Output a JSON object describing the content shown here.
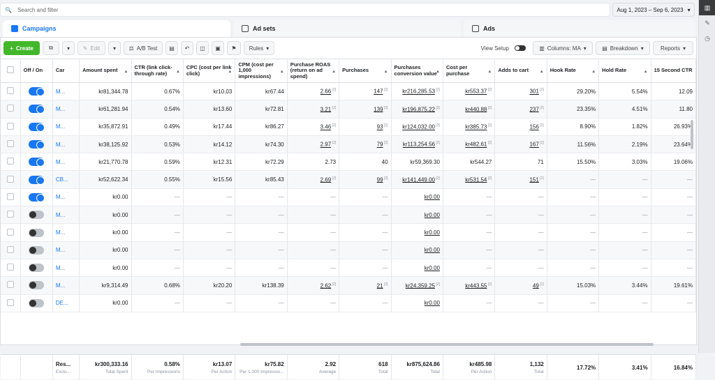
{
  "search": {
    "placeholder": "Search and filter"
  },
  "date_range": "Aug 1, 2023 – Sep 6, 2023",
  "tabs": [
    {
      "label": "Campaigns",
      "active": true
    },
    {
      "label": "Ad sets",
      "active": false
    },
    {
      "label": "Ads",
      "active": false
    }
  ],
  "toolbar": {
    "create": "Create",
    "edit": "Edit",
    "ab_test": "A/B Test",
    "rules": "Rules",
    "view_setup": "View Setup",
    "columns": "Columns: MA",
    "breakdown": "Breakdown",
    "reports": "Reports"
  },
  "columns": [
    "Off / On",
    "Car",
    "Amount spent",
    "CTR (link click-through rate)",
    "CPC (cost per link click)",
    "CPM (cost per 1,000 impressions)",
    "Purchase ROAS (return on ad spend)",
    "Purchases",
    "Purchases conversion value",
    "Cost per purchase",
    "Adds to cart",
    "Hook Rate",
    "Hold Rate",
    "15 Second CTR"
  ],
  "rows": [
    {
      "on": true,
      "name": "M...",
      "spent": "kr81,344.78",
      "ctr": "0.67%",
      "cpc": "kr10.03",
      "cpm": "kr67.44",
      "roas": "2.66",
      "purchases": "147",
      "value": "kr216,285.53",
      "cpp": "kr553.37",
      "atc": "301",
      "hook": "29.20%",
      "hold": "5.54%",
      "ctr15": "12.09"
    },
    {
      "on": true,
      "name": "M...",
      "spent": "kr61,281.94",
      "ctr": "0.54%",
      "cpc": "kr13.60",
      "cpm": "kr72.81",
      "roas": "3.21",
      "purchases": "139",
      "value": "kr196,875.22",
      "cpp": "kr440.88",
      "atc": "237",
      "hook": "23.35%",
      "hold": "4.51%",
      "ctr15": "11.80"
    },
    {
      "on": true,
      "name": "M...",
      "spent": "kr35,872.91",
      "ctr": "0.49%",
      "cpc": "kr17.44",
      "cpm": "kr86.27",
      "roas": "3.46",
      "purchases": "93",
      "value": "kr124,032.00",
      "cpp": "kr385.73",
      "atc": "156",
      "hook": "8.90%",
      "hold": "1.82%",
      "ctr15": "26.93%"
    },
    {
      "on": true,
      "name": "M...",
      "spent": "kr38,125.92",
      "ctr": "0.53%",
      "cpc": "kr14.12",
      "cpm": "kr74.30",
      "roas": "2.97",
      "purchases": "79",
      "value": "kr113,254.56",
      "cpp": "kr482.61",
      "atc": "167",
      "hook": "11.56%",
      "hold": "2.19%",
      "ctr15": "23.64%"
    },
    {
      "on": true,
      "name": "M...",
      "spent": "kr21,770.78",
      "ctr": "0.59%",
      "cpc": "kr12.31",
      "cpm": "kr72.29",
      "roas": "2.73",
      "purchases": "40",
      "value": "kr59,369.30",
      "cpp": "kr544.27",
      "atc": "71",
      "hook": "15.50%",
      "hold": "3.03%",
      "ctr15": "19.06%"
    },
    {
      "on": true,
      "name": "CB...",
      "spent": "kr52,622.34",
      "ctr": "0.55%",
      "cpc": "kr15.56",
      "cpm": "kr85.43",
      "roas": "2.69",
      "purchases": "99",
      "value": "kr141,449.00",
      "cpp": "kr531.54",
      "atc": "151",
      "hook": "—",
      "hold": "—",
      "ctr15": "—"
    },
    {
      "on": true,
      "name": "M...",
      "spent": "kr0.00",
      "ctr": "—",
      "cpc": "—",
      "cpm": "—",
      "roas": "—",
      "purchases": "—",
      "value": "kr0.00",
      "cpp": "—",
      "atc": "—",
      "hook": "—",
      "hold": "—",
      "ctr15": "—"
    },
    {
      "on": false,
      "name": "M...",
      "spent": "kr0.00",
      "ctr": "—",
      "cpc": "—",
      "cpm": "—",
      "roas": "—",
      "purchases": "—",
      "value": "kr0.00",
      "cpp": "—",
      "atc": "—",
      "hook": "—",
      "hold": "—",
      "ctr15": "—"
    },
    {
      "on": false,
      "name": "M...",
      "spent": "kr0.00",
      "ctr": "—",
      "cpc": "—",
      "cpm": "—",
      "roas": "—",
      "purchases": "—",
      "value": "kr0.00",
      "cpp": "—",
      "atc": "—",
      "hook": "—",
      "hold": "—",
      "ctr15": "—"
    },
    {
      "on": false,
      "name": "M...",
      "spent": "kr0.00",
      "ctr": "—",
      "cpc": "—",
      "cpm": "—",
      "roas": "—",
      "purchases": "—",
      "value": "kr0.00",
      "cpp": "—",
      "atc": "—",
      "hook": "—",
      "hold": "—",
      "ctr15": "—"
    },
    {
      "on": false,
      "name": "M...",
      "spent": "kr0.00",
      "ctr": "—",
      "cpc": "—",
      "cpm": "—",
      "roas": "—",
      "purchases": "—",
      "value": "kr0.00",
      "cpp": "—",
      "atc": "—",
      "hook": "—",
      "hold": "—",
      "ctr15": "—"
    },
    {
      "on": false,
      "name": "M...",
      "spent": "kr9,314.49",
      "ctr": "0.68%",
      "cpc": "kr20.20",
      "cpm": "kr138.39",
      "roas": "2.62",
      "purchases": "21",
      "value": "kr24,359.25",
      "cpp": "kr443.55",
      "atc": "49",
      "hook": "15.03%",
      "hold": "3.44%",
      "ctr15": "19.61%"
    },
    {
      "on": false,
      "name": "DE...",
      "spent": "kr0.00",
      "ctr": "—",
      "cpc": "—",
      "cpm": "—",
      "roas": "—",
      "purchases": "—",
      "value": "kr0.00",
      "cpp": "—",
      "atc": "—",
      "hook": "—",
      "hold": "—",
      "ctr15": "—"
    }
  ],
  "totals": {
    "name": "Res...",
    "name_sub": "Exclu...",
    "spent": "kr300,333.16",
    "spent_sub": "Total Spent",
    "ctr": "0.58%",
    "ctr_sub": "Per Impressions",
    "cpc": "kr13.07",
    "cpc_sub": "Per Action",
    "cpm": "kr75.82",
    "cpm_sub": "Per 1,000 Impressio...",
    "roas": "2.92",
    "roas_sub": "Average",
    "purchases": "618",
    "purchases_sub": "Total",
    "value": "kr875,624.86",
    "value_sub": "Total",
    "cpp": "kr485.98",
    "cpp_sub": "Per Action",
    "atc": "1,132",
    "atc_sub": "Total",
    "hook": "17.72%",
    "hold": "3.41%",
    "ctr15": "16.84%"
  }
}
